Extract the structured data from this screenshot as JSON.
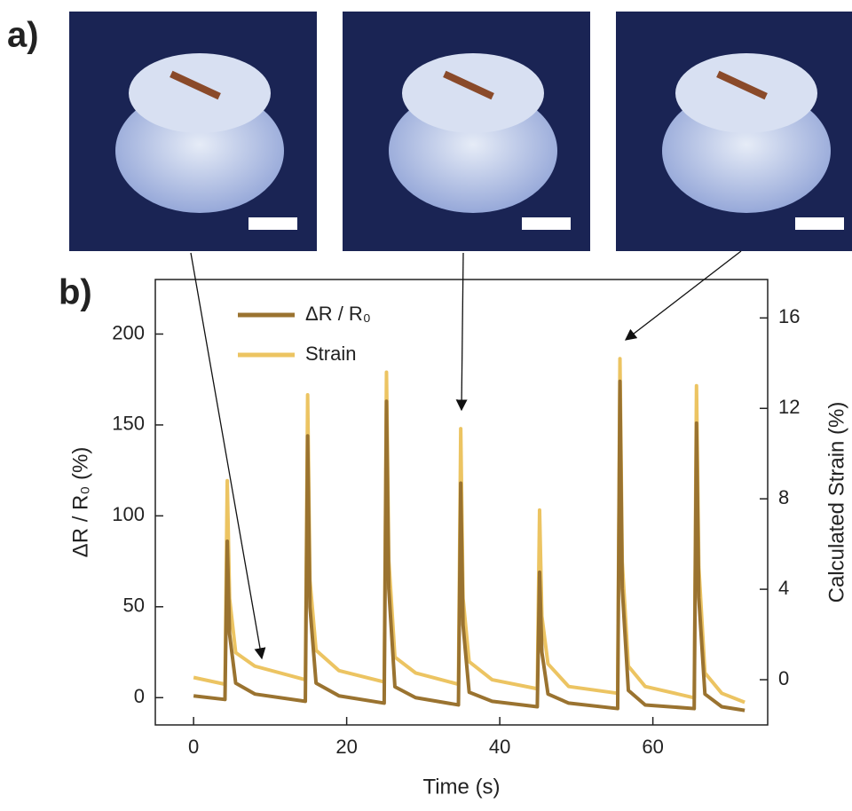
{
  "chart_data": {
    "type": "line",
    "panel_labels": [
      "a)",
      "b)"
    ],
    "xlabel": "Time (s)",
    "ylabel": "ΔR / R₀ (%)",
    "y2label": "Calculated Strain (%)",
    "xlim": [
      -5,
      75
    ],
    "xticks": [
      0,
      20,
      40,
      60
    ],
    "ylim": [
      -15,
      230
    ],
    "yticks": [
      0,
      50,
      100,
      150,
      200
    ],
    "y2lim": [
      -2,
      17.7
    ],
    "y2ticks": [
      0,
      4,
      8,
      12,
      16
    ],
    "legend": "upper left",
    "x": [
      0,
      4.1,
      4.4,
      4.7,
      5.5,
      8,
      14.6,
      14.9,
      15.2,
      16,
      19,
      24.9,
      25.2,
      25.5,
      26.3,
      29,
      34.6,
      34.9,
      35.2,
      36,
      39,
      44.9,
      45.2,
      45.5,
      46.3,
      49,
      55.4,
      55.7,
      56.0,
      56.8,
      59,
      65.4,
      65.7,
      66.0,
      66.8,
      69,
      72
    ],
    "series": [
      {
        "name": "Strain",
        "color": "#ecc462",
        "axis": "y2",
        "values": [
          0.1,
          -0.2,
          8.8,
          3.6,
          1.2,
          0.6,
          0.0,
          12.6,
          4.4,
          1.3,
          0.4,
          -0.1,
          13.6,
          5.3,
          1.0,
          0.3,
          -0.2,
          11.1,
          3.6,
          0.8,
          0.0,
          -0.4,
          7.5,
          2.8,
          0.7,
          -0.3,
          -0.6,
          14.2,
          5.2,
          0.6,
          -0.3,
          -0.8,
          13.0,
          5.0,
          0.3,
          -0.6,
          -1.0
        ]
      },
      {
        "name": "ΔR / R₀",
        "color": "#9a7330",
        "values": [
          1,
          -1,
          86,
          35,
          8,
          2,
          -2,
          144,
          50,
          8,
          1,
          -3,
          163,
          60,
          6,
          0,
          -4,
          118,
          40,
          3,
          -2,
          -5,
          69,
          25,
          2,
          -3,
          -6,
          174,
          60,
          4,
          -4,
          -6,
          151,
          55,
          2,
          -5,
          -7
        ]
      }
    ]
  }
}
